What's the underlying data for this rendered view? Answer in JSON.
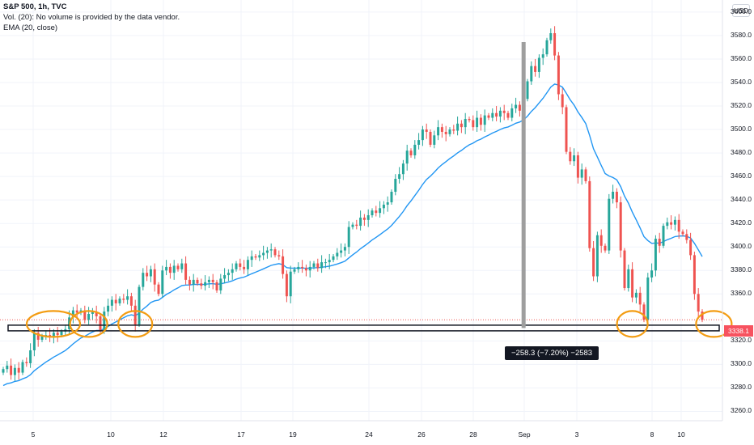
{
  "legend": {
    "title": "S&P 500, 1h, TVC",
    "volume": "Vol. (20): No volume is provided by the data vendor.",
    "ema": "EMA (20, close)"
  },
  "currency_button": "USD",
  "current_price_label": "3338.1",
  "measure_label": "−258.3 (−7.20%) −2583",
  "colors": {
    "up": "#26a69a",
    "down": "#ef5350",
    "ema": "#2196f3",
    "circle": "#f39c12",
    "vline": "#9e9e9e",
    "support_band": "#131722"
  },
  "chart_data": {
    "type": "candlestick",
    "symbol": "S&P 500",
    "interval": "1h",
    "ylim": [
      3250,
      3610
    ],
    "y_ticks": [
      "3600.0",
      "3580.0",
      "3560.0",
      "3540.0",
      "3520.0",
      "3500.0",
      "3480.0",
      "3460.0",
      "3440.0",
      "3420.0",
      "3400.0",
      "3380.0",
      "3360.0",
      "3320.0",
      "3300.0",
      "3280.0",
      "3260.0"
    ],
    "x_ticks": [
      "5",
      "10",
      "12",
      "17",
      "19",
      "24",
      "26",
      "28",
      "Sep",
      "3",
      "8",
      "10"
    ],
    "series": [
      {
        "name": "Close",
        "closes": [
          3296,
          3299,
          3291,
          3297,
          3293,
          3302,
          3301,
          3312,
          3327,
          3321,
          3324,
          3325,
          3323,
          3327,
          3325,
          3328,
          3330,
          3340,
          3346,
          3344,
          3346,
          3338,
          3343,
          3345,
          3341,
          3329,
          3345,
          3350,
          3355,
          3352,
          3356,
          3355,
          3358,
          3350,
          3334,
          3366,
          3378,
          3375,
          3381,
          3368,
          3360,
          3380,
          3383,
          3378,
          3384,
          3381,
          3386,
          3372,
          3368,
          3372,
          3369,
          3367,
          3370,
          3372,
          3370,
          3363,
          3373,
          3376,
          3378,
          3381,
          3386,
          3383,
          3381,
          3389,
          3392,
          3391,
          3393,
          3395,
          3397,
          3398,
          3393,
          3392,
          3377,
          3358,
          3379,
          3381,
          3383,
          3382,
          3380,
          3383,
          3386,
          3382,
          3387,
          3387,
          3389,
          3392,
          3395,
          3397,
          3400,
          3417,
          3419,
          3418,
          3425,
          3423,
          3427,
          3431,
          3429,
          3433,
          3436,
          3438,
          3447,
          3458,
          3462,
          3471,
          3482,
          3478,
          3487,
          3491,
          3500,
          3498,
          3487,
          3495,
          3502,
          3498,
          3496,
          3500,
          3499,
          3505,
          3502,
          3509,
          3508,
          3502,
          3510,
          3504,
          3512,
          3510,
          3514,
          3511,
          3516,
          3514,
          3510,
          3518,
          3521,
          3516,
          3526,
          3541,
          3554,
          3549,
          3561,
          3564,
          3576,
          3582,
          3563,
          3530,
          3519,
          3481,
          3473,
          3478,
          3459,
          3466,
          3456,
          3399,
          3375,
          3410,
          3401,
          3397,
          3441,
          3447,
          3438,
          3397,
          3365,
          3381,
          3357,
          3361,
          3351,
          3338,
          3374,
          3380,
          3407,
          3401,
          3418,
          3421,
          3419,
          3423,
          3413,
          3411,
          3406,
          3393,
          3360,
          3345,
          3338
        ]
      },
      {
        "name": "EMA (20, close)",
        "type": "line"
      }
    ],
    "annotations": {
      "support_level": 3331,
      "vertical_marker_index": 134,
      "circled_indices": [
        8,
        22,
        34,
        162,
        183
      ]
    }
  }
}
